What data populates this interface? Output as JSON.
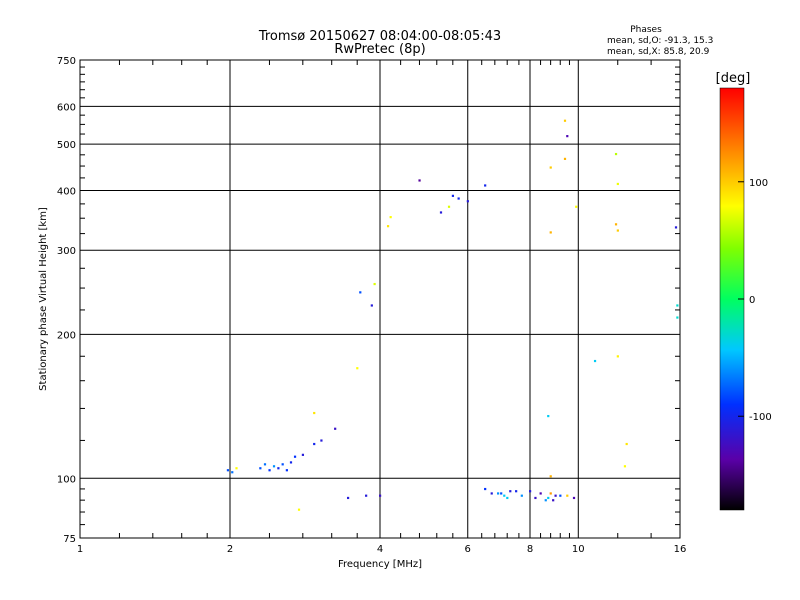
{
  "chart_data": {
    "type": "scatter",
    "title": "Tromsø 20150627 08:04:00-08:05:43",
    "subtitle": "RwPretec (8p)",
    "xlabel": "Frequency [MHz]",
    "ylabel": "Stationary phase Virtual Height [km]",
    "x_scale": "log",
    "y_scale": "log",
    "xlim": [
      1,
      16
    ],
    "ylim": [
      75,
      750
    ],
    "grid": true,
    "x_ticks": [
      1,
      2,
      4,
      6,
      8,
      10,
      16
    ],
    "y_ticks": [
      75,
      100,
      200,
      300,
      400,
      500,
      600,
      750
    ],
    "x_minor_ticks": [
      1.2,
      1.4,
      1.6,
      1.8,
      2.4,
      2.8,
      3.2,
      3.6,
      4.4,
      4.8,
      5.2,
      5.6,
      6.4,
      6.8,
      7.2,
      7.6,
      8.4,
      8.8,
      9.2,
      9.6,
      12,
      14
    ],
    "y_minor_ticks": [
      80,
      85,
      90,
      95,
      120,
      140,
      160,
      180,
      225,
      250,
      275,
      325,
      350,
      375,
      425,
      450,
      475,
      525,
      550,
      575,
      625,
      650,
      675,
      700,
      725
    ],
    "info": {
      "heading": "Phases",
      "line1": "mean, sd,O: -91.3, 15.3",
      "line2": "mean, sd,X:  85.8, 20.9"
    },
    "colorbar": {
      "label": "[deg]",
      "min": -180,
      "max": 180,
      "ticks": [
        100,
        0,
        -100
      ]
    },
    "series": [
      {
        "values": [
          [
            1.98,
            104,
            -80
          ],
          [
            2.02,
            103,
            -70
          ],
          [
            2.06,
            105,
            80
          ],
          [
            2.3,
            105,
            -80
          ],
          [
            2.35,
            107,
            -70
          ],
          [
            2.4,
            104,
            -90
          ],
          [
            2.45,
            106,
            -60
          ],
          [
            2.5,
            105,
            -100
          ],
          [
            2.55,
            107,
            -80
          ],
          [
            2.6,
            104,
            -90
          ],
          [
            2.65,
            108,
            -100
          ],
          [
            2.7,
            111,
            -90
          ],
          [
            2.8,
            112,
            -110
          ],
          [
            2.95,
            118,
            -100
          ],
          [
            3.05,
            120,
            -110
          ],
          [
            3.25,
            127,
            -120
          ],
          [
            2.75,
            86,
            80
          ],
          [
            2.95,
            137,
            90
          ],
          [
            3.45,
            91,
            -110
          ],
          [
            3.75,
            92,
            -110
          ],
          [
            4.0,
            92,
            -120
          ],
          [
            3.6,
            170,
            80
          ],
          [
            3.9,
            255,
            70
          ],
          [
            3.85,
            230,
            -110
          ],
          [
            4.15,
            337,
            90
          ],
          [
            3.65,
            245,
            -80
          ],
          [
            4.2,
            352,
            80
          ],
          [
            4.8,
            420,
            -140
          ],
          [
            5.3,
            360,
            -110
          ],
          [
            5.5,
            370,
            70
          ],
          [
            5.6,
            390,
            -100
          ],
          [
            5.75,
            385,
            -100
          ],
          [
            6.0,
            380,
            -110
          ],
          [
            6.5,
            410,
            -100
          ],
          [
            6.5,
            95,
            -90
          ],
          [
            6.7,
            93,
            -110
          ],
          [
            6.9,
            93,
            -60
          ],
          [
            7.0,
            93,
            -80
          ],
          [
            7.1,
            92,
            -40
          ],
          [
            7.2,
            91,
            -40
          ],
          [
            7.3,
            94,
            -110
          ],
          [
            7.5,
            94,
            -100
          ],
          [
            7.7,
            92,
            -60
          ],
          [
            8.0,
            94,
            -110
          ],
          [
            8.2,
            91,
            -120
          ],
          [
            8.4,
            93,
            -130
          ],
          [
            8.6,
            90,
            -60
          ],
          [
            8.7,
            91,
            -40
          ],
          [
            8.8,
            93,
            120
          ],
          [
            8.9,
            90,
            -120
          ],
          [
            9.0,
            92,
            -120
          ],
          [
            9.2,
            92,
            -80
          ],
          [
            9.5,
            92,
            100
          ],
          [
            9.8,
            91,
            -130
          ],
          [
            8.8,
            447,
            100
          ],
          [
            8.8,
            327,
            110
          ],
          [
            8.7,
            135,
            -40
          ],
          [
            8.8,
            101,
            110
          ],
          [
            9.4,
            560,
            100
          ],
          [
            9.4,
            466,
            110
          ],
          [
            9.5,
            520,
            -130
          ],
          [
            9.9,
            370,
            80
          ],
          [
            10.8,
            176,
            -40
          ],
          [
            11.9,
            477,
            60
          ],
          [
            12.0,
            413,
            75
          ],
          [
            12.0,
            330,
            100
          ],
          [
            11.9,
            340,
            110
          ],
          [
            12.0,
            180,
            85
          ],
          [
            12.5,
            118,
            90
          ],
          [
            12.4,
            106,
            80
          ],
          [
            15.7,
            335,
            -110
          ],
          [
            15.8,
            230,
            -30
          ],
          [
            15.8,
            217,
            -30
          ]
        ]
      }
    ]
  }
}
